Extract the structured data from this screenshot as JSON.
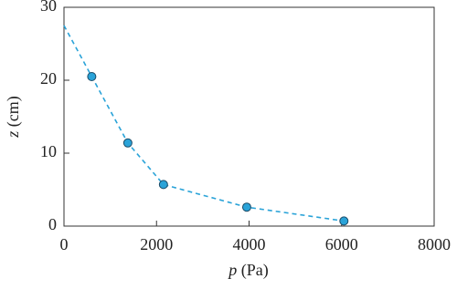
{
  "chart_data": {
    "type": "scatter",
    "xlabel": {
      "symbol": "p",
      "unit": "(Pa)"
    },
    "ylabel": {
      "symbol": "z",
      "unit": "(cm)"
    },
    "xlim": [
      0,
      8000
    ],
    "xticks": [
      0,
      2000,
      4000,
      6000,
      8000
    ],
    "ylim": [
      0,
      30
    ],
    "yticks": [
      0,
      10,
      20,
      30
    ],
    "series": [
      {
        "color": "#2aa3d8",
        "marker": false,
        "dashed": true,
        "x": [
          0,
          600,
          1380,
          2150,
          3950,
          6050
        ],
        "values": [
          27.5,
          20.5,
          11.4,
          5.7,
          2.6,
          0.7
        ]
      },
      {
        "color": "#2aa3d8",
        "marker": true,
        "dashed": false,
        "x": [
          600,
          1380,
          2150,
          3950,
          6050
        ],
        "values": [
          20.5,
          11.4,
          5.7,
          2.6,
          0.7
        ]
      }
    ]
  }
}
